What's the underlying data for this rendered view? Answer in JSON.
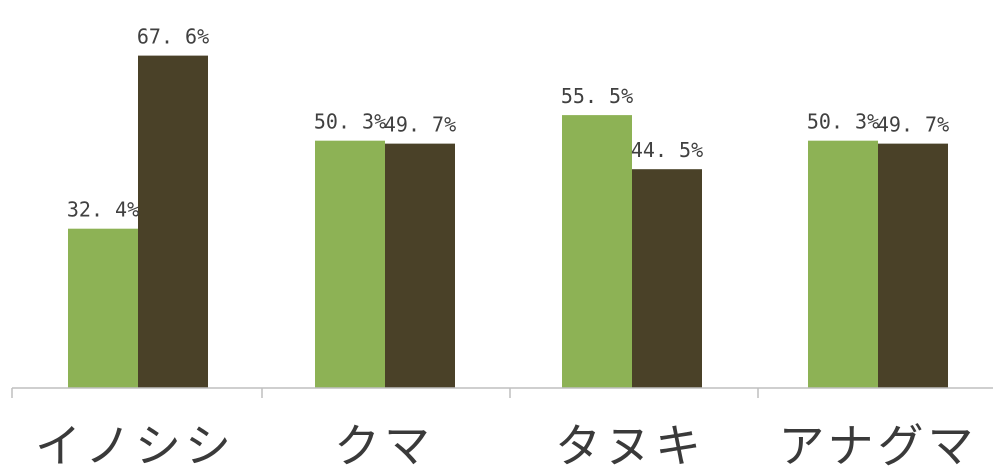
{
  "chart_data": {
    "type": "bar",
    "categories": [
      "イノシシ",
      "クマ",
      "タヌキ",
      "アナグマ"
    ],
    "series": [
      {
        "values": [
          32.4,
          50.3,
          55.5,
          50.3
        ],
        "color": "#8db255"
      },
      {
        "values": [
          67.6,
          49.7,
          44.5,
          49.7
        ],
        "color": "#4a4128"
      }
    ],
    "data_labels": [
      [
        "32. 4%",
        "50. 3%",
        "55. 5%",
        "50. 3%"
      ],
      [
        "67. 6%",
        "49. 7%",
        "44. 5%",
        "49. 7%"
      ]
    ],
    "ylim": [
      0,
      70
    ],
    "grid": false,
    "legend": "none",
    "axis_color": "#bfbfbf"
  }
}
